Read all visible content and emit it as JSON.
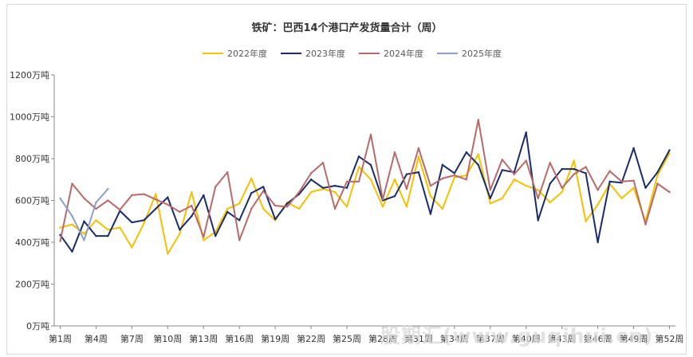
{
  "chart_data": {
    "type": "line",
    "title": "铁矿：巴西14个港口产发货量合计（周）",
    "xlabel": "",
    "ylabel": "",
    "ylim": [
      0,
      1200
    ],
    "yticks": [
      "0万吨",
      "200万吨",
      "400万吨",
      "600万吨",
      "800万吨",
      "1000万吨",
      "1200万吨"
    ],
    "xticks": [
      "第1周",
      "第4周",
      "第7周",
      "第10周",
      "第13周",
      "第16周",
      "第19周",
      "第22周",
      "第25周",
      "第28周",
      "第31周",
      "第34周",
      "第37周",
      "第40周",
      "第43周",
      "第46周",
      "第49周",
      "第52周"
    ],
    "weeks": [
      1,
      2,
      3,
      4,
      5,
      6,
      7,
      8,
      9,
      10,
      11,
      12,
      13,
      14,
      15,
      16,
      17,
      18,
      19,
      20,
      21,
      22,
      23,
      24,
      25,
      26,
      27,
      28,
      29,
      30,
      31,
      32,
      33,
      34,
      35,
      36,
      37,
      38,
      39,
      40,
      41,
      42,
      43,
      44,
      45,
      46,
      47,
      48,
      49,
      50,
      51,
      52
    ],
    "legend_position": "top",
    "grid": false,
    "series": [
      {
        "name": "2022年度",
        "color": "#f5c000",
        "values": [
          470,
          485,
          440,
          505,
          460,
          470,
          375,
          490,
          630,
          345,
          440,
          640,
          410,
          450,
          560,
          585,
          705,
          560,
          505,
          590,
          560,
          640,
          655,
          640,
          570,
          760,
          700,
          570,
          700,
          570,
          810,
          620,
          560,
          710,
          720,
          820,
          585,
          610,
          700,
          670,
          650,
          590,
          640,
          790,
          500,
          580,
          680,
          610,
          660,
          500,
          720,
          825
        ]
      },
      {
        "name": "2023年度",
        "color": "#1a2b6b",
        "values": [
          435,
          355,
          500,
          430,
          430,
          550,
          495,
          505,
          560,
          615,
          460,
          525,
          625,
          430,
          545,
          505,
          635,
          665,
          510,
          585,
          630,
          700,
          660,
          670,
          660,
          810,
          770,
          600,
          620,
          725,
          735,
          535,
          770,
          730,
          830,
          770,
          610,
          745,
          735,
          925,
          505,
          680,
          750,
          750,
          730,
          400,
          690,
          685,
          850,
          660,
          735,
          840
        ]
      },
      {
        "name": "2024年度",
        "color": "#b86a6a",
        "values": [
          405,
          680,
          610,
          560,
          600,
          555,
          625,
          630,
          605,
          580,
          545,
          575,
          425,
          665,
          735,
          410,
          560,
          645,
          575,
          570,
          640,
          730,
          780,
          560,
          690,
          690,
          915,
          605,
          830,
          655,
          850,
          670,
          705,
          720,
          700,
          985,
          650,
          795,
          725,
          790,
          610,
          780,
          660,
          725,
          760,
          650,
          740,
          690,
          695,
          485,
          680,
          640
        ]
      },
      {
        "name": "2025年度",
        "color": "#8aa0c8",
        "values": [
          610,
          525,
          410,
          590,
          655
        ]
      }
    ]
  }
}
